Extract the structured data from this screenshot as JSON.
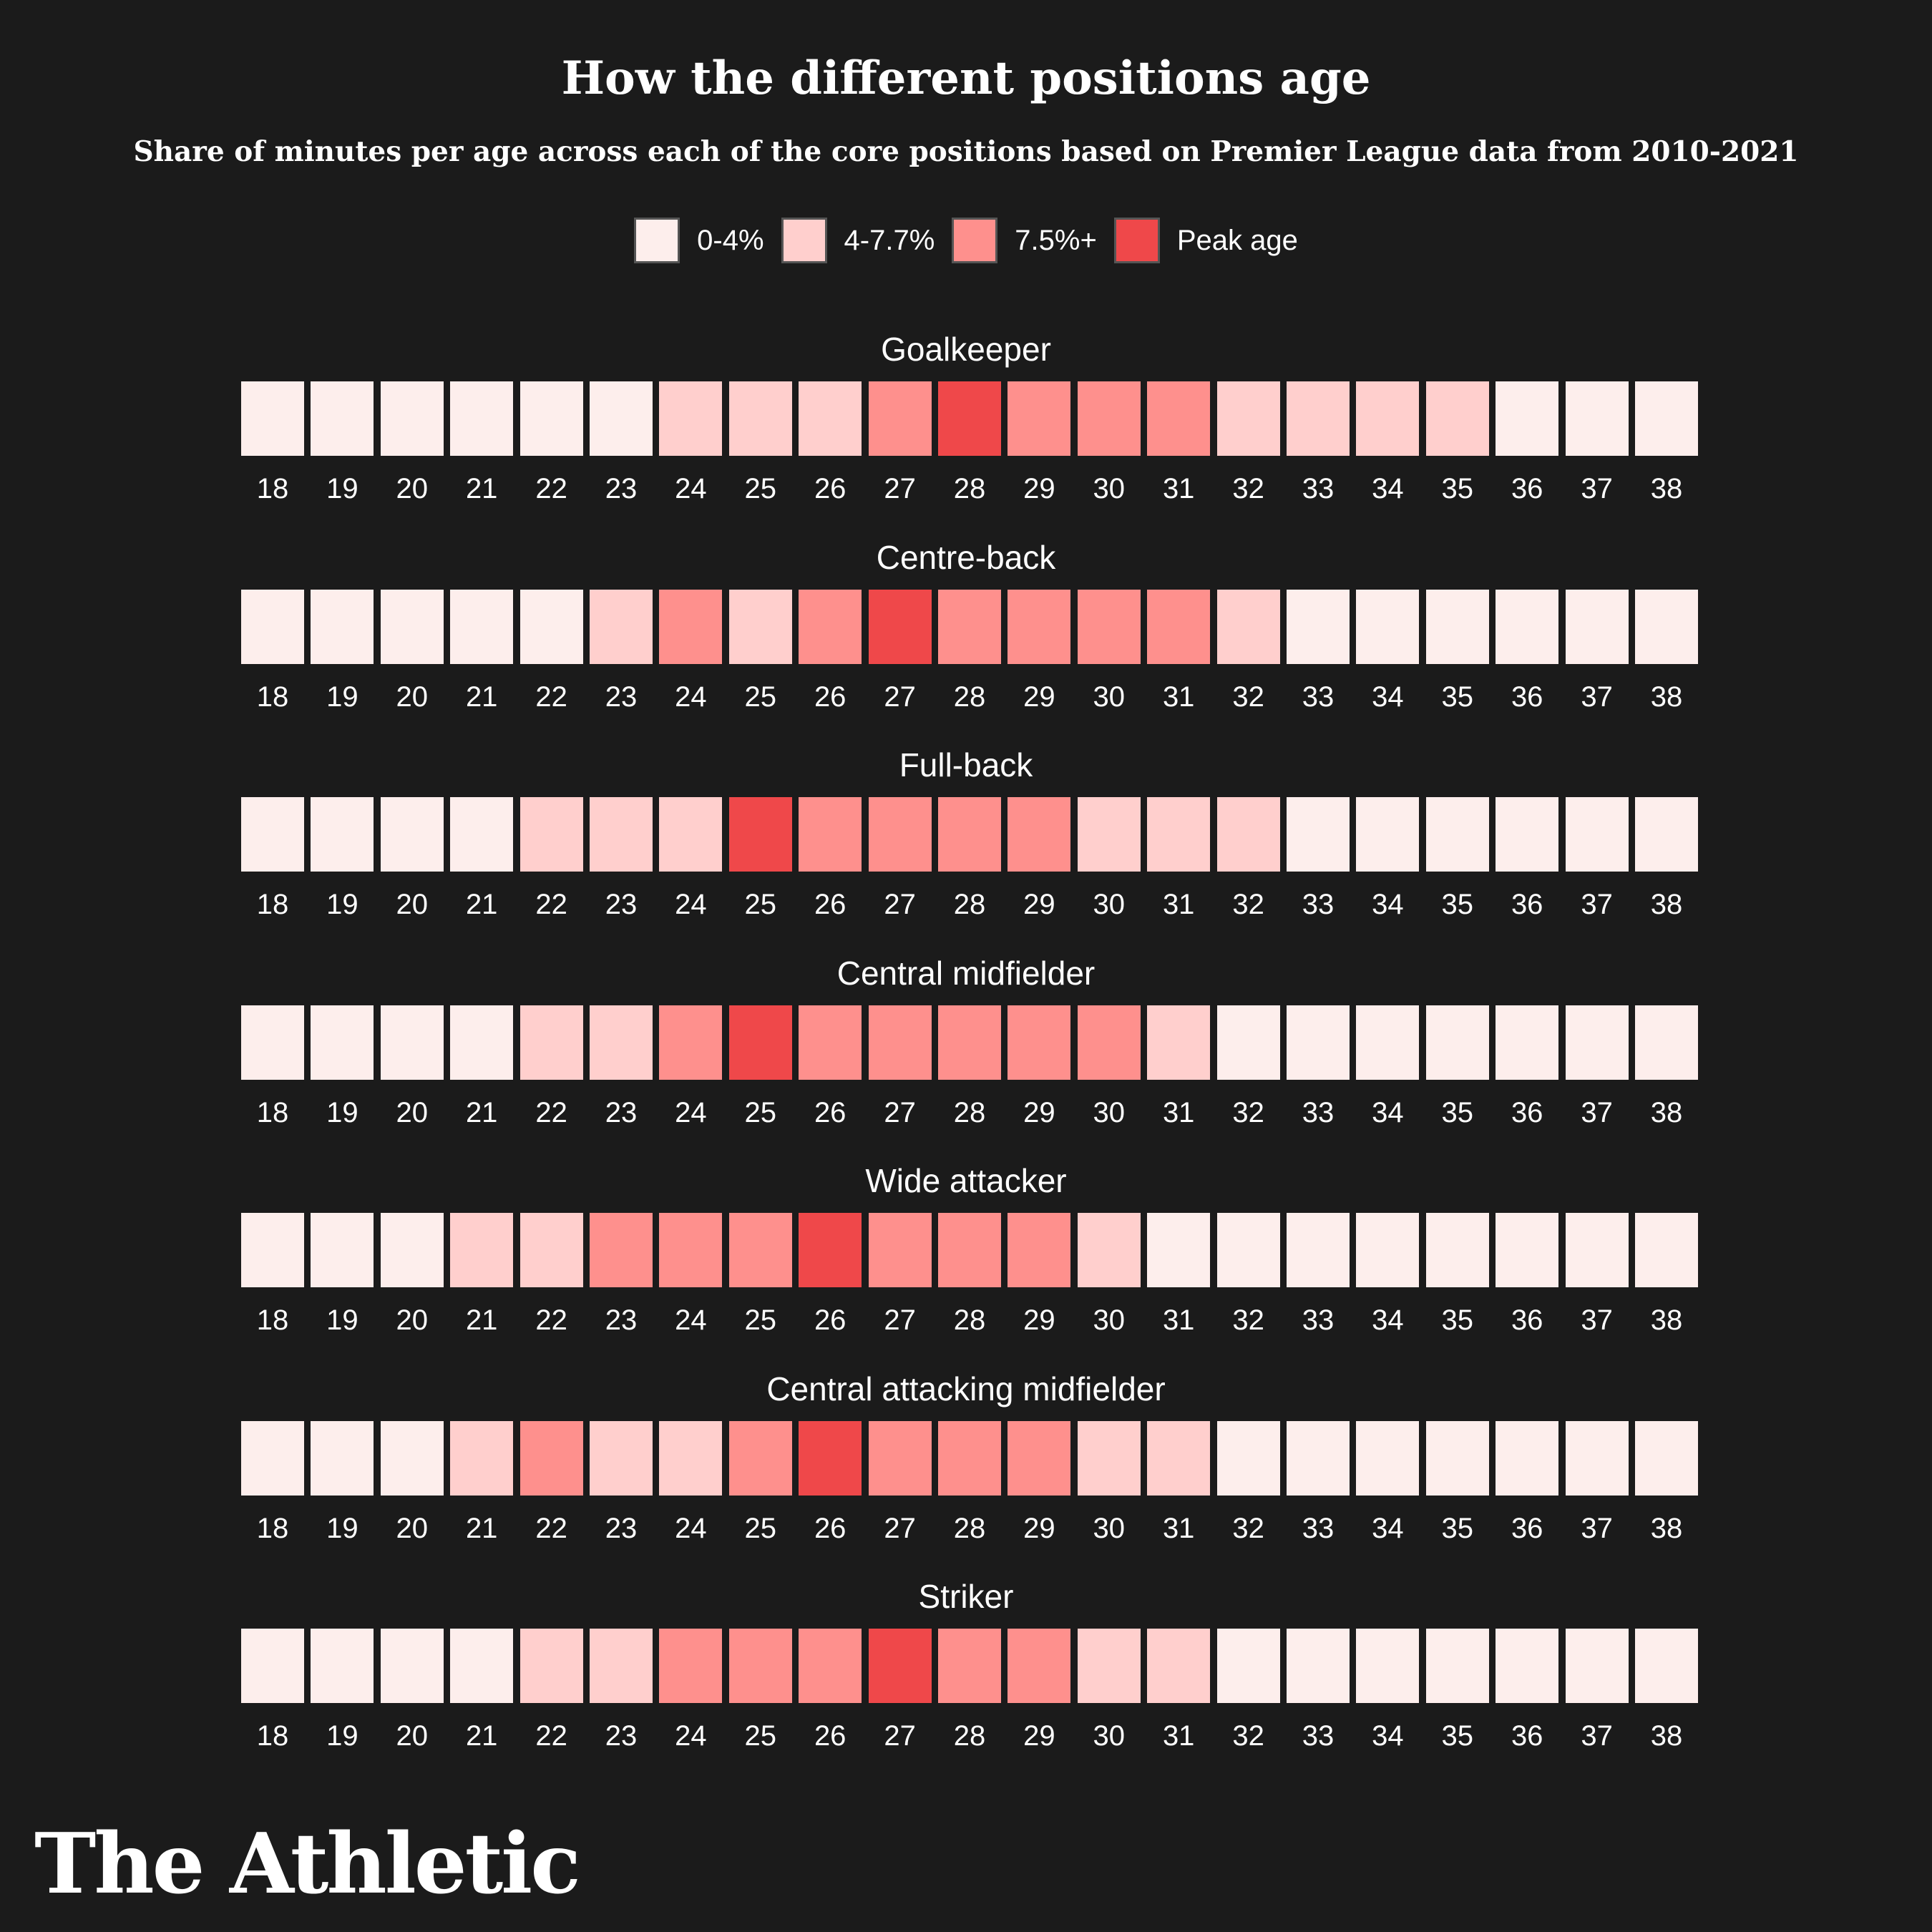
{
  "title": "How the different positions age",
  "subtitle": "Share of minutes per age across each of the core positions based on Premier League data from 2010-2021",
  "brand": "The Athletic",
  "legend": [
    {
      "label": "0-4%",
      "color": "#fdeeec"
    },
    {
      "label": "4-7.7%",
      "color": "#ffcfcd"
    },
    {
      "label": "7.5%+",
      "color": "#fe908d"
    },
    {
      "label": "Peak age",
      "color": "#ef484a"
    }
  ],
  "chart_data": {
    "type": "heatmap",
    "title": "How the different positions age",
    "subtitle": "Share of minutes per age across each of the core positions based on Premier League data from 2010-2021",
    "ages": [
      18,
      19,
      20,
      21,
      22,
      23,
      24,
      25,
      26,
      27,
      28,
      29,
      30,
      31,
      32,
      33,
      34,
      35,
      36,
      37,
      38
    ],
    "category_labels": [
      "0-4%",
      "4-7.7%",
      "7.5%+",
      "Peak age"
    ],
    "category_colors": [
      "#fdeeec",
      "#ffcfcd",
      "#fe908d",
      "#ef484a"
    ],
    "series": [
      {
        "name": "Goalkeeper",
        "values": [
          0,
          0,
          0,
          0,
          0,
          0,
          1,
          1,
          1,
          2,
          3,
          2,
          2,
          2,
          1,
          1,
          1,
          1,
          0,
          0,
          0
        ]
      },
      {
        "name": "Centre-back",
        "values": [
          0,
          0,
          0,
          0,
          0,
          1,
          2,
          1,
          2,
          3,
          2,
          2,
          2,
          2,
          1,
          0,
          0,
          0,
          0,
          0,
          0
        ]
      },
      {
        "name": "Full-back",
        "values": [
          0,
          0,
          0,
          0,
          1,
          1,
          1,
          3,
          2,
          2,
          2,
          2,
          1,
          1,
          1,
          0,
          0,
          0,
          0,
          0,
          0
        ]
      },
      {
        "name": "Central midfielder",
        "values": [
          0,
          0,
          0,
          0,
          1,
          1,
          2,
          3,
          2,
          2,
          2,
          2,
          2,
          1,
          0,
          0,
          0,
          0,
          0,
          0,
          0
        ]
      },
      {
        "name": "Wide attacker",
        "values": [
          0,
          0,
          0,
          1,
          1,
          2,
          2,
          2,
          3,
          2,
          2,
          2,
          1,
          0,
          0,
          0,
          0,
          0,
          0,
          0,
          0
        ]
      },
      {
        "name": "Central attacking midfielder",
        "values": [
          0,
          0,
          0,
          1,
          2,
          1,
          1,
          2,
          3,
          2,
          2,
          2,
          1,
          1,
          0,
          0,
          0,
          0,
          0,
          0,
          0
        ]
      },
      {
        "name": "Striker",
        "values": [
          0,
          0,
          0,
          0,
          1,
          1,
          2,
          2,
          2,
          3,
          2,
          2,
          1,
          1,
          0,
          0,
          0,
          0,
          0,
          0,
          0
        ]
      }
    ]
  }
}
